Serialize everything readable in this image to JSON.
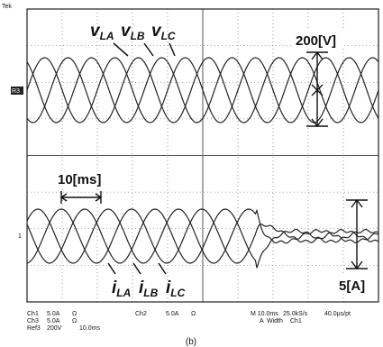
{
  "header": {
    "brand": "Tek",
    "ch3_marker": "R3",
    "ch1_marker": "1"
  },
  "voltage": {
    "labels": [
      {
        "symbol": "v",
        "subscript": "LA"
      },
      {
        "symbol": "v",
        "subscript": "LB"
      },
      {
        "symbol": "v",
        "subscript": "LC"
      }
    ],
    "scale": "200[V]"
  },
  "current": {
    "labels": [
      {
        "symbol": "i",
        "subscript": "LA"
      },
      {
        "symbol": "i",
        "subscript": "LB"
      },
      {
        "symbol": "i",
        "subscript": "LC"
      }
    ],
    "scale": "5[A]",
    "time": "10[ms]"
  },
  "readout": {
    "rows": [
      [
        "Ch1",
        "5.0A",
        "Ω"
      ],
      [
        "Ch3",
        "5.0A",
        "Ω"
      ],
      [
        "Ref3",
        "200V",
        "10.0ms"
      ]
    ],
    "ch2": [
      "Ch2",
      "5.0A",
      "Ω"
    ],
    "timebase": [
      "M 10.0ms",
      "25.0kS/s",
      "40.0µs/pt"
    ],
    "trigger": [
      "A",
      "Width",
      "Ch1"
    ]
  },
  "caption": "(b)"
}
